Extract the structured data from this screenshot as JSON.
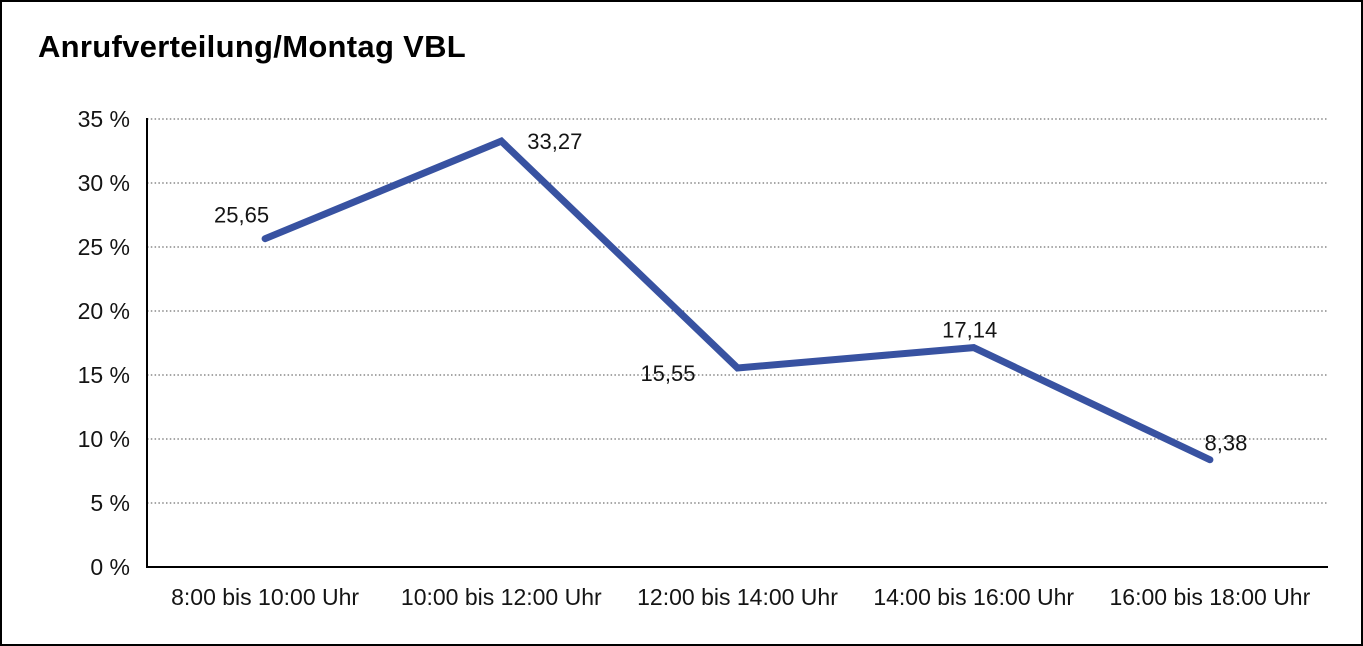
{
  "header": {
    "title": "Anrufverteilung/Montag VBL"
  },
  "chart_data": {
    "type": "line",
    "title": "Anrufverteilung/Montag VBL",
    "categories": [
      "8:00 bis 10:00 Uhr",
      "10:00 bis 12:00 Uhr",
      "12:00 bis 14:00 Uhr",
      "14:00 bis 16:00 Uhr",
      "16:00 bis 18:00 Uhr"
    ],
    "values": [
      25.65,
      33.27,
      15.55,
      17.14,
      8.38
    ],
    "point_labels": [
      "25,65",
      "33,27",
      "15,55",
      "17,14",
      "8,38"
    ],
    "unit": "%",
    "xlabel": "",
    "ylabel": "",
    "ylim": [
      0,
      35
    ],
    "y_ticks": [
      {
        "value": 35,
        "label": "35 %"
      },
      {
        "value": 30,
        "label": "30 %"
      },
      {
        "value": 25,
        "label": "25 %"
      },
      {
        "value": 20,
        "label": "20 %"
      },
      {
        "value": 15,
        "label": "15 %"
      },
      {
        "value": 10,
        "label": "10 %"
      },
      {
        "value": 5,
        "label": "5 %"
      },
      {
        "value": 0,
        "label": "0 %"
      }
    ],
    "legend": "none",
    "grid": "horizontal-dotted",
    "line_color": "#3852A1",
    "axis_color": "#000000",
    "text_color": "#141414",
    "background": "#ffffff",
    "border_color": "#000000"
  }
}
